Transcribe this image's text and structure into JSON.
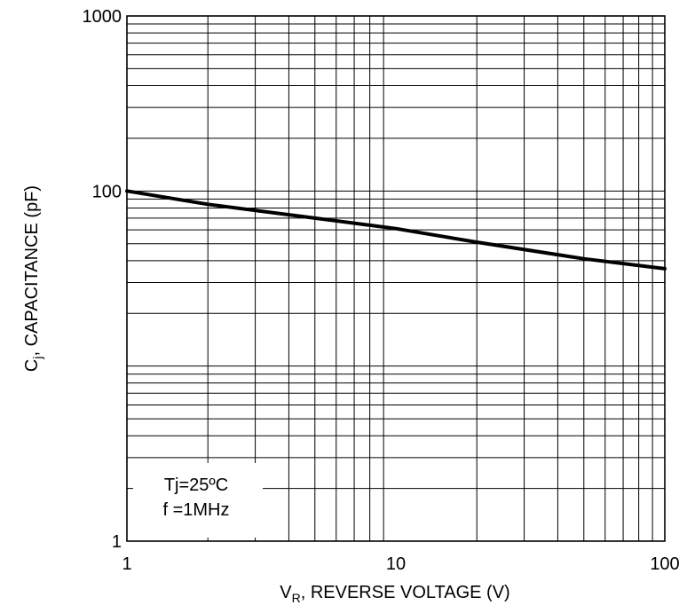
{
  "chart_data": {
    "type": "line",
    "title": "",
    "xlabel": {
      "main": "V",
      "sub": "R",
      "rest": ", REVERSE VOLTAGE (V)"
    },
    "ylabel": {
      "main": "C",
      "sub": "j",
      "rest": ", CAPACITANCE (pF)"
    },
    "x_scale": "log",
    "y_scale": "log",
    "xlim": [
      1,
      100
    ],
    "ylim": [
      1,
      1000
    ],
    "x_ticks": [
      {
        "value": 1,
        "label": "1"
      },
      {
        "value": 10,
        "label": "10"
      },
      {
        "value": 100,
        "label": "100"
      }
    ],
    "y_ticks": [
      {
        "value": 1,
        "label": "1"
      },
      {
        "value": 100,
        "label": "100"
      },
      {
        "value": 1000,
        "label": "1000"
      }
    ],
    "grid": true,
    "series": [
      {
        "x": [
          1,
          2,
          5,
          10,
          20,
          50,
          100
        ],
        "y": [
          100,
          84,
          70,
          61,
          51,
          41,
          36
        ]
      }
    ],
    "annotations": [
      "Tj=25ºC",
      "f =1MHz"
    ]
  }
}
